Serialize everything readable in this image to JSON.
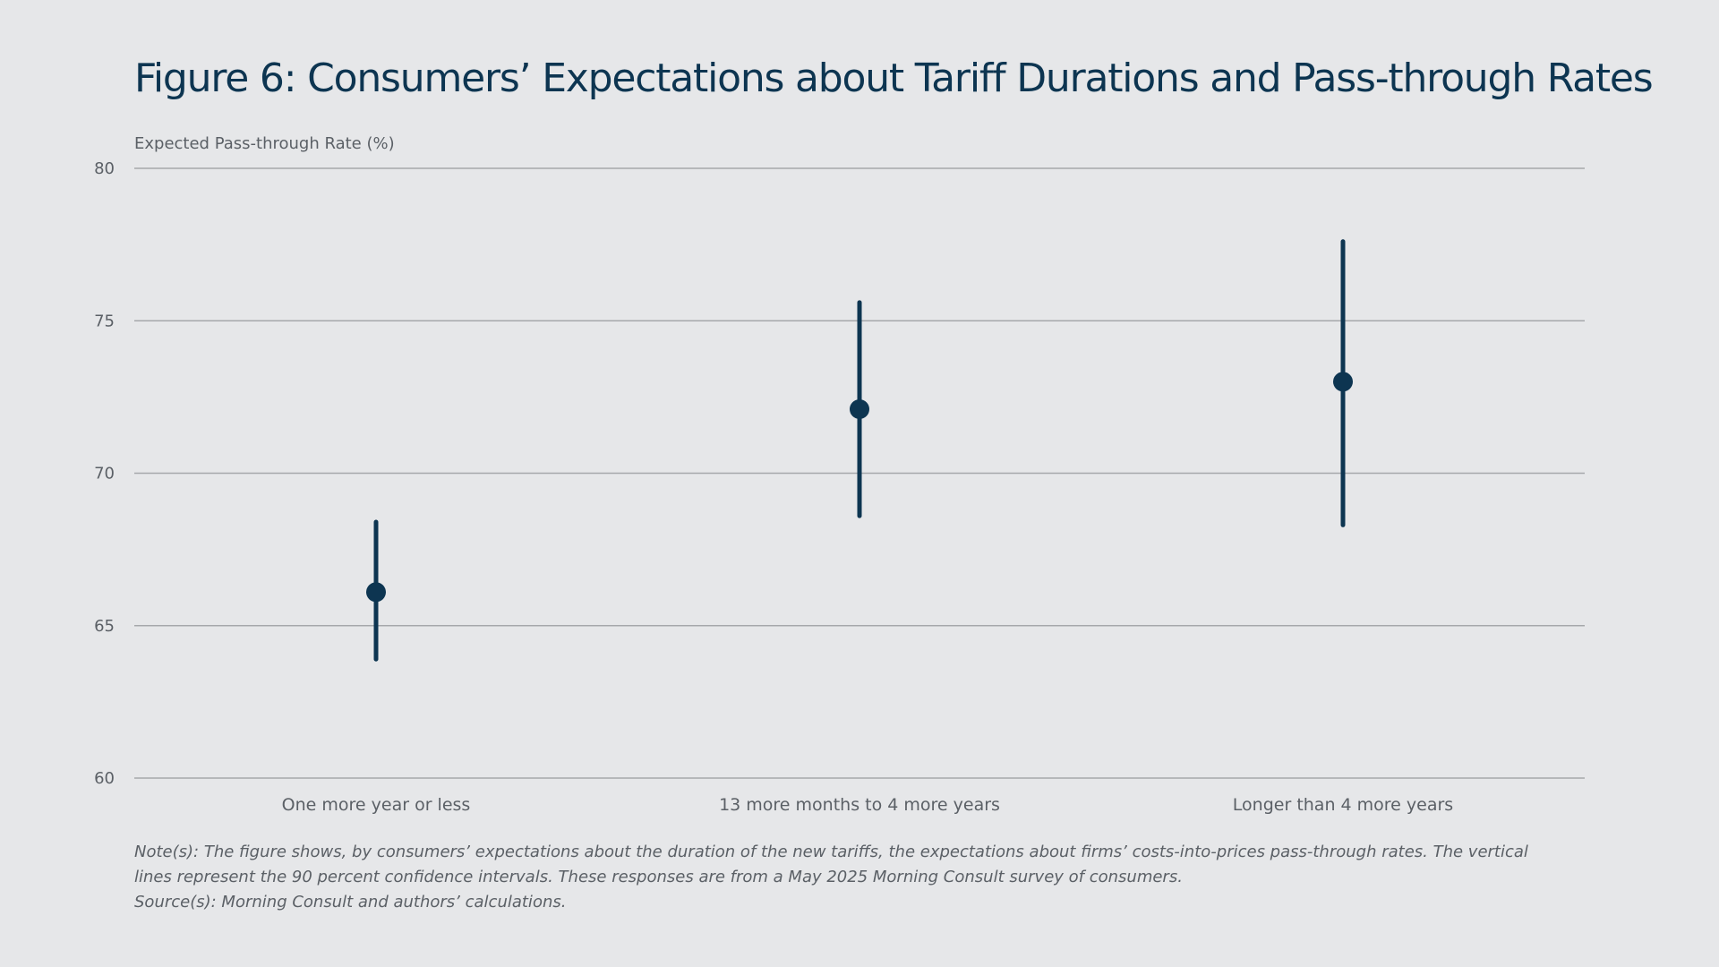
{
  "title": "Figure 6: Consumers’ Expectations about Tariff Durations and Pass-through Rates",
  "colors": {
    "background": "#e6e7e9",
    "marker": "#0d3551",
    "gridline": "#a6a8ab",
    "text": "#5b6066"
  },
  "chart_data": {
    "type": "scatter",
    "subtype": "point-estimate-with-confidence-interval",
    "ylabel": "Expected Pass-through Rate (%)",
    "xlabel": "",
    "ylim": [
      60,
      80
    ],
    "yticks": [
      60,
      65,
      70,
      75,
      80
    ],
    "grid": true,
    "categories": [
      "One more year or less",
      "13 more months to 4 more years",
      "Longer than 4 more years"
    ],
    "values": [
      66.1,
      72.1,
      73.0
    ],
    "ci_lower": [
      63.9,
      68.6,
      68.3
    ],
    "ci_upper": [
      68.4,
      75.6,
      77.6
    ],
    "confidence_level": "90 percent"
  },
  "notes": {
    "note": "Note(s): The figure shows, by consumers’ expectations about the duration of the new tariffs, the expectations about firms’ costs-into-prices pass-through rates. The vertical lines represent the 90 percent confidence intervals. These responses are from a May 2025 Morning Consult survey of consumers.",
    "source": "Source(s): Morning Consult and authors’ calculations."
  }
}
